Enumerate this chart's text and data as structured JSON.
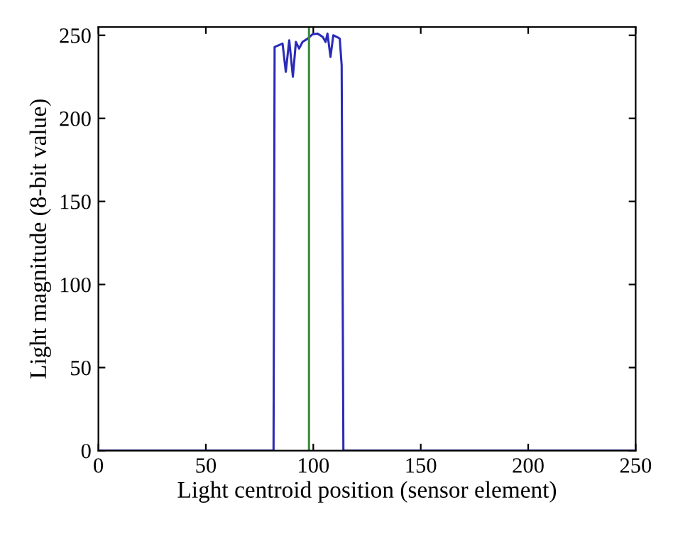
{
  "chart_data": {
    "type": "line",
    "xlabel": "Light centroid position (sensor element)",
    "ylabel": "Light magnitude (8-bit value)",
    "xlim": [
      0,
      250
    ],
    "ylim": [
      0,
      255
    ],
    "xticks": [
      0,
      50,
      100,
      150,
      200,
      250
    ],
    "yticks": [
      0,
      50,
      100,
      150,
      200,
      250
    ],
    "grid": false,
    "legend": false,
    "marker": "none",
    "line_style": "solid",
    "series": [
      {
        "color": "#2b2bb8",
        "x": [
          0,
          81.5,
          82,
          83,
          85.7,
          87.2,
          88.8,
          90.5,
          91.9,
          93.4,
          95,
          97.4,
          99.6,
          102,
          104.4,
          105.7,
          106.6,
          108,
          109.3,
          111,
          112.3,
          113.2,
          114,
          250
        ],
        "values": [
          0,
          0,
          243,
          243.5,
          245,
          228,
          247,
          225,
          246,
          242,
          246,
          248,
          250.6,
          251,
          249,
          246,
          251,
          237,
          250,
          249,
          248,
          232,
          0,
          0
        ]
      }
    ],
    "ref_lines": [
      {
        "axis": "x",
        "value": 98,
        "color": "#3a8a3a",
        "line_style": "solid"
      }
    ]
  }
}
